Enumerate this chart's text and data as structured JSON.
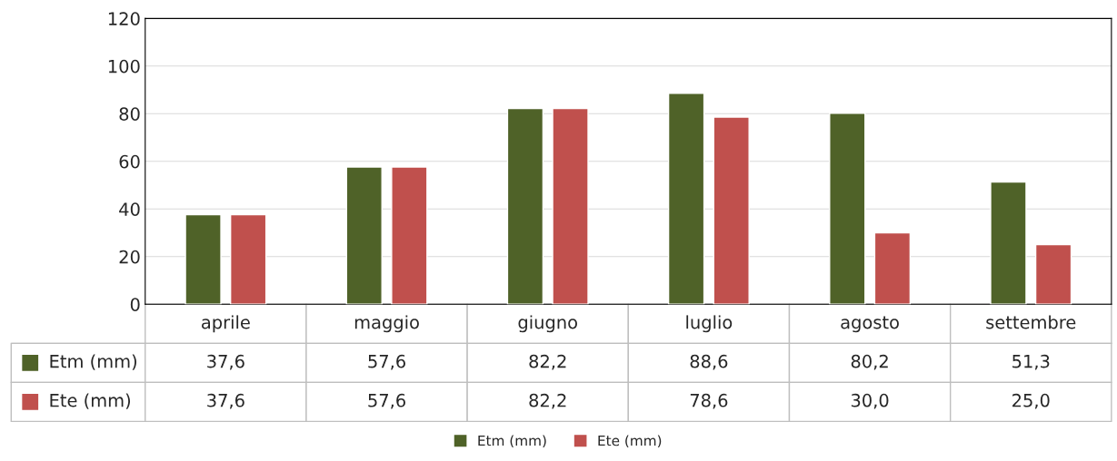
{
  "chart_data": {
    "type": "bar",
    "categories": [
      "aprile",
      "maggio",
      "giugno",
      "luglio",
      "agosto",
      "settembre"
    ],
    "series": [
      {
        "name": "Etm (mm)",
        "color": "#4f6228",
        "values": [
          37.6,
          57.6,
          82.2,
          88.6,
          80.2,
          51.3
        ],
        "value_labels": [
          "37,6",
          "57,6",
          "82,2",
          "88,6",
          "80,2",
          "51,3"
        ]
      },
      {
        "name": "Ete (mm)",
        "color": "#c0504d",
        "values": [
          37.6,
          57.6,
          82.2,
          78.6,
          30.0,
          25.0
        ],
        "value_labels": [
          "37,6",
          "57,6",
          "82,2",
          "78,6",
          "30,0",
          "25,0"
        ]
      }
    ],
    "ylim": [
      0,
      120
    ],
    "yticks": [
      0,
      20,
      40,
      60,
      80,
      100,
      120
    ],
    "grid": "y",
    "legend": "bottom"
  }
}
